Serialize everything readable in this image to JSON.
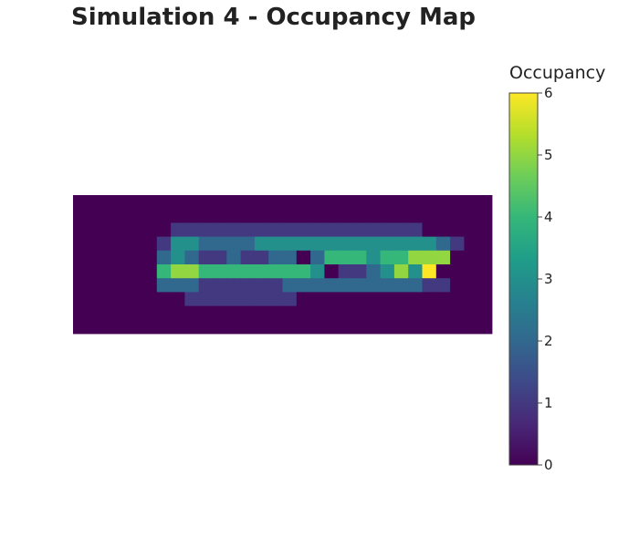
{
  "chart_data": {
    "type": "heatmap",
    "title": "Simulation 4 - Occupancy Map",
    "colorbar": {
      "title": "Occupancy",
      "range": [
        0,
        6
      ],
      "ticks": [
        "0",
        "1",
        "2",
        "3",
        "4",
        "5",
        "6"
      ],
      "colorscale": "viridis"
    },
    "grid_on": false,
    "values": [
      [
        0,
        0,
        0,
        0,
        0,
        0,
        0,
        0,
        0,
        0,
        0,
        0,
        0,
        0,
        0,
        0,
        0,
        0,
        0,
        0,
        0,
        0,
        0,
        0,
        0,
        0,
        0,
        0,
        0,
        0
      ],
      [
        0,
        0,
        0,
        0,
        0,
        0,
        0,
        0,
        0,
        0,
        0,
        0,
        0,
        0,
        0,
        0,
        0,
        0,
        0,
        0,
        0,
        0,
        0,
        0,
        0,
        0,
        0,
        0,
        0,
        0
      ],
      [
        0,
        0,
        0,
        0,
        0,
        0,
        0,
        1,
        1,
        1,
        1,
        1,
        1,
        1,
        1,
        1,
        1,
        1,
        1,
        1,
        1,
        1,
        1,
        1,
        1,
        0,
        0,
        0,
        0,
        0
      ],
      [
        0,
        0,
        0,
        0,
        0,
        0,
        1,
        3,
        3,
        2,
        2,
        2,
        2,
        3,
        3,
        3,
        3,
        3,
        3,
        3,
        3,
        3,
        3,
        3,
        3,
        3,
        2,
        1,
        0,
        0
      ],
      [
        0,
        0,
        0,
        0,
        0,
        0,
        2,
        3,
        2,
        1,
        1,
        2,
        1,
        1,
        2,
        2,
        0,
        2,
        4,
        4,
        4,
        3,
        4,
        4,
        5,
        5,
        5,
        0,
        0,
        0
      ],
      [
        0,
        0,
        0,
        0,
        0,
        0,
        4,
        5,
        5,
        4,
        4,
        4,
        4,
        4,
        4,
        4,
        4,
        3,
        0,
        1,
        1,
        2,
        3,
        5,
        3,
        6,
        0,
        0,
        0,
        0
      ],
      [
        0,
        0,
        0,
        0,
        0,
        0,
        2,
        2,
        2,
        1,
        1,
        1,
        1,
        1,
        1,
        2,
        2,
        2,
        2,
        2,
        2,
        2,
        2,
        2,
        2,
        1,
        1,
        0,
        0,
        0
      ],
      [
        0,
        0,
        0,
        0,
        0,
        0,
        0,
        0,
        1,
        1,
        1,
        1,
        1,
        1,
        1,
        1,
        0,
        0,
        0,
        0,
        0,
        0,
        0,
        0,
        0,
        0,
        0,
        0,
        0,
        0
      ],
      [
        0,
        0,
        0,
        0,
        0,
        0,
        0,
        0,
        0,
        0,
        0,
        0,
        0,
        0,
        0,
        0,
        0,
        0,
        0,
        0,
        0,
        0,
        0,
        0,
        0,
        0,
        0,
        0,
        0,
        0
      ],
      [
        0,
        0,
        0,
        0,
        0,
        0,
        0,
        0,
        0,
        0,
        0,
        0,
        0,
        0,
        0,
        0,
        0,
        0,
        0,
        0,
        0,
        0,
        0,
        0,
        0,
        0,
        0,
        0,
        0,
        0
      ]
    ]
  }
}
